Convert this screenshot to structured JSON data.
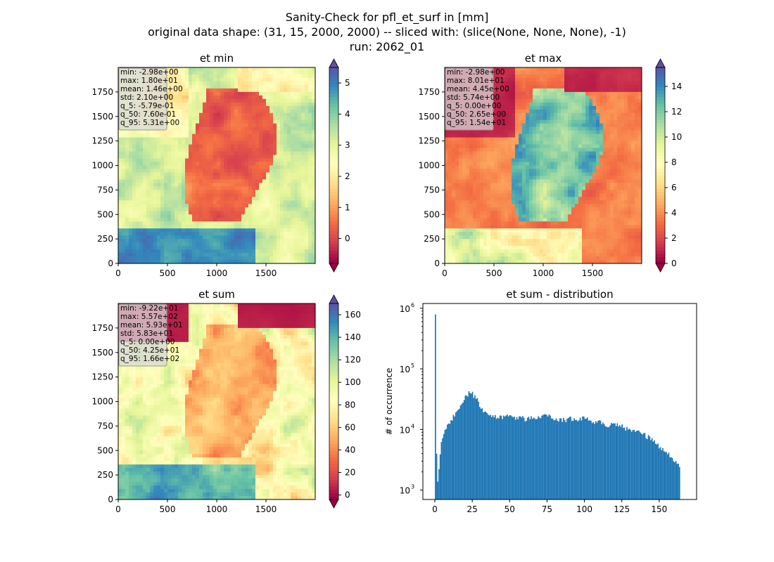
{
  "figure": {
    "title_lines": [
      "Sanity-Check for pfl_et_surf in [mm]",
      "original data shape: (31, 15, 2000, 2000) -- sliced with: (slice(None, None, None), -1)",
      "run: 2062_01"
    ]
  },
  "chart_data": [
    {
      "type": "heatmap",
      "title": "et min",
      "colormap": "Spectral",
      "xticks": [
        "0",
        "500",
        "1000",
        "1500"
      ],
      "yticks": [
        "0",
        "250",
        "500",
        "750",
        "1000",
        "1250",
        "1500",
        "1750"
      ],
      "xlim": [
        0,
        2000
      ],
      "ylim": [
        0,
        2000
      ],
      "colorbar": {
        "min": -0.8,
        "max": 5.5,
        "ticks": [
          "0",
          "1",
          "2",
          "3",
          "4",
          "5"
        ],
        "tick_values": [
          0,
          1,
          2,
          3,
          4,
          5
        ],
        "extend": "both"
      },
      "stats": [
        "min: -2.98e+00",
        "max: 1.80e+01",
        "mean: 1.46e+00",
        "std: 2.10e+00",
        "q_5: -5.79e-01",
        "q_50: 7.60e-01",
        "q_95: 5.31e+00"
      ],
      "stats_box_color": "#d8d8d8"
    },
    {
      "type": "heatmap",
      "title": "et max",
      "colormap": "Spectral",
      "xticks": [
        "0",
        "500",
        "1000",
        "1500"
      ],
      "yticks": [
        "0",
        "250",
        "500",
        "750",
        "1000",
        "1250",
        "1500",
        "1750"
      ],
      "xlim": [
        0,
        2000
      ],
      "ylim": [
        0,
        2000
      ],
      "colorbar": {
        "min": 0,
        "max": 15.5,
        "ticks": [
          "0",
          "2",
          "4",
          "6",
          "8",
          "10",
          "12",
          "14"
        ],
        "tick_values": [
          0,
          2,
          4,
          6,
          8,
          10,
          12,
          14
        ],
        "extend": "both"
      },
      "stats": [
        "min: -2.98e+00",
        "max: 8.01e+01",
        "mean: 4.45e+00",
        "std: 5.74e+00",
        "q_5: 0.00e+00",
        "q_50: 2.65e+00",
        "q_95: 1.54e+01"
      ],
      "stats_box_color": "#d8d8d8"
    },
    {
      "type": "heatmap",
      "title": "et sum",
      "colormap": "Spectral",
      "xticks": [
        "0",
        "500",
        "1000",
        "1500"
      ],
      "yticks": [
        "0",
        "250",
        "500",
        "750",
        "1000",
        "1250",
        "1500",
        "1750"
      ],
      "xlim": [
        0,
        2000
      ],
      "ylim": [
        0,
        2000
      ],
      "colorbar": {
        "min": -4,
        "max": 170,
        "ticks": [
          "0",
          "20",
          "40",
          "60",
          "80",
          "100",
          "120",
          "140",
          "160"
        ],
        "tick_values": [
          0,
          20,
          40,
          60,
          80,
          100,
          120,
          140,
          160
        ],
        "extend": "both"
      },
      "stats": [
        "min: -9.22e+01",
        "max: 5.57e+02",
        "mean: 5.93e+01",
        "std: 5.83e+01",
        "q_5: 0.00e+00",
        "q_50: 4.25e+01",
        "q_95: 1.66e+02"
      ],
      "stats_box_color": "#d8d8d8"
    },
    {
      "type": "bar",
      "title": "et sum - distribution",
      "ylabel": "# of occurrence",
      "xlabel": "",
      "yscale": "log",
      "ylim": [
        700,
        1200000
      ],
      "xlim": [
        -8,
        175
      ],
      "xticks": [
        "0",
        "25",
        "50",
        "75",
        "100",
        "125",
        "150"
      ],
      "xtick_values": [
        0,
        25,
        50,
        75,
        100,
        125,
        150
      ],
      "ytick_labels": [
        "10",
        "10",
        "10",
        "10"
      ],
      "ytick_exponents": [
        "3",
        "4",
        "5",
        "6"
      ],
      "ytick_values": [
        1000,
        10000,
        100000,
        1000000
      ],
      "bar_color": "#1f77b4",
      "bin_width": 0.8,
      "series": [
        {
          "x": [
            0,
            1,
            2,
            3,
            4,
            5,
            6,
            7,
            8,
            9,
            10,
            11,
            12,
            13,
            14,
            15,
            16,
            17,
            18,
            19,
            20,
            21,
            22,
            23,
            24,
            25,
            26,
            27,
            28,
            29,
            30,
            31,
            32,
            33,
            34,
            35,
            36,
            37,
            38,
            39,
            40,
            45,
            50,
            55,
            60,
            65,
            70,
            75,
            80,
            85,
            90,
            95,
            100,
            105,
            110,
            115,
            120,
            125,
            130,
            135,
            140,
            145,
            150,
            155,
            160,
            164
          ],
          "values": [
            790000,
            950,
            1800,
            3800,
            6000,
            8000,
            9500,
            11000,
            12000,
            13000,
            14000,
            15000,
            16000,
            17500,
            19000,
            21000,
            23000,
            25000,
            28000,
            31000,
            34000,
            37000,
            39000,
            40000,
            39000,
            38000,
            36000,
            33000,
            30000,
            27000,
            24000,
            22000,
            20000,
            19000,
            18500,
            18000,
            17500,
            17000,
            16500,
            16000,
            16000,
            15500,
            16500,
            15500,
            15000,
            16000,
            16000,
            17500,
            15000,
            14000,
            15000,
            14000,
            16000,
            13500,
            13000,
            12000,
            12500,
            11000,
            10000,
            9000,
            8000,
            7000,
            5000,
            4000,
            3000,
            2500
          ]
        }
      ]
    }
  ]
}
